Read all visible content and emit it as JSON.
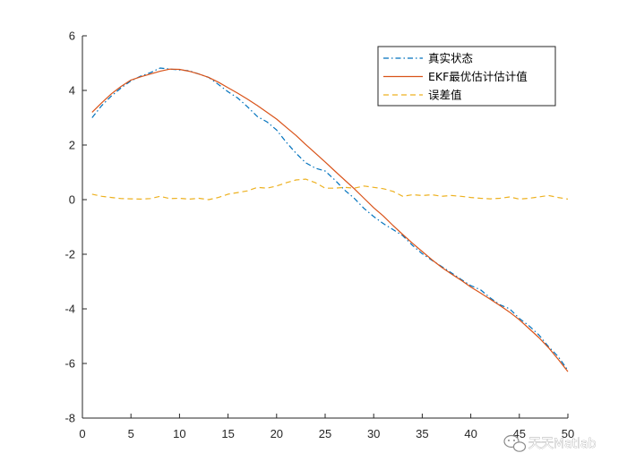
{
  "chart_data": {
    "type": "line",
    "xlabel": "",
    "ylabel": "",
    "xlim": [
      0,
      50
    ],
    "ylim": [
      -8,
      6
    ],
    "xticks": [
      0,
      5,
      10,
      15,
      20,
      25,
      30,
      35,
      40,
      45,
      50
    ],
    "yticks": [
      -8,
      -6,
      -4,
      -2,
      0,
      2,
      4,
      6
    ],
    "grid": false,
    "legend_position": "top-right",
    "series": [
      {
        "name": "真实状态",
        "color": "#0072BD",
        "style": "dashdot",
        "x": [
          1,
          2,
          3,
          4,
          5,
          6,
          7,
          8,
          9,
          10,
          11,
          12,
          13,
          14,
          15,
          16,
          17,
          18,
          19,
          20,
          21,
          22,
          23,
          24,
          25,
          26,
          27,
          28,
          29,
          30,
          31,
          32,
          33,
          34,
          35,
          36,
          37,
          38,
          39,
          40,
          41,
          42,
          43,
          44,
          45,
          46,
          47,
          48,
          49,
          50
        ],
        "values": [
          3.0,
          3.45,
          3.8,
          4.1,
          4.35,
          4.52,
          4.65,
          4.82,
          4.78,
          4.75,
          4.72,
          4.6,
          4.48,
          4.22,
          3.95,
          3.72,
          3.4,
          3.05,
          2.85,
          2.55,
          2.1,
          1.7,
          1.35,
          1.15,
          1.05,
          0.72,
          0.35,
          0.05,
          -0.32,
          -0.62,
          -0.88,
          -1.1,
          -1.32,
          -1.68,
          -1.98,
          -2.22,
          -2.45,
          -2.68,
          -2.92,
          -3.15,
          -3.3,
          -3.6,
          -3.85,
          -4.0,
          -4.35,
          -4.62,
          -4.95,
          -5.38,
          -5.75,
          -6.25
        ]
      },
      {
        "name": "EKF最优估计估计值",
        "color": "#D95319",
        "style": "solid",
        "x": [
          1,
          2,
          3,
          4,
          5,
          6,
          7,
          8,
          9,
          10,
          11,
          12,
          13,
          14,
          15,
          16,
          17,
          18,
          19,
          20,
          21,
          22,
          23,
          24,
          25,
          26,
          27,
          28,
          29,
          30,
          31,
          32,
          33,
          34,
          35,
          36,
          37,
          38,
          39,
          40,
          41,
          42,
          43,
          44,
          45,
          46,
          47,
          48,
          49,
          50
        ],
        "values": [
          3.2,
          3.55,
          3.88,
          4.15,
          4.38,
          4.5,
          4.6,
          4.7,
          4.78,
          4.77,
          4.7,
          4.6,
          4.48,
          4.3,
          4.1,
          3.9,
          3.68,
          3.45,
          3.2,
          2.95,
          2.65,
          2.35,
          2.02,
          1.7,
          1.38,
          1.05,
          0.72,
          0.4,
          0.05,
          -0.3,
          -0.6,
          -0.95,
          -1.28,
          -1.6,
          -1.9,
          -2.2,
          -2.48,
          -2.72,
          -2.95,
          -3.2,
          -3.42,
          -3.65,
          -3.88,
          -4.12,
          -4.4,
          -4.72,
          -5.05,
          -5.42,
          -5.85,
          -6.3
        ]
      },
      {
        "name": "误差值",
        "color": "#EDB120",
        "style": "dashed",
        "x": [
          1,
          2,
          3,
          4,
          5,
          6,
          7,
          8,
          9,
          10,
          11,
          12,
          13,
          14,
          15,
          16,
          17,
          18,
          19,
          20,
          21,
          22,
          23,
          24,
          25,
          26,
          27,
          28,
          29,
          30,
          31,
          32,
          33,
          34,
          35,
          36,
          37,
          38,
          39,
          40,
          41,
          42,
          43,
          44,
          45,
          46,
          47,
          48,
          49,
          50
        ],
        "values": [
          0.2,
          0.12,
          0.08,
          0.04,
          0.03,
          0.02,
          0.04,
          0.12,
          0.04,
          0.05,
          0.02,
          0.05,
          0.0,
          0.08,
          0.2,
          0.26,
          0.32,
          0.45,
          0.42,
          0.5,
          0.62,
          0.72,
          0.75,
          0.62,
          0.42,
          0.42,
          0.45,
          0.42,
          0.5,
          0.45,
          0.4,
          0.3,
          0.12,
          0.18,
          0.15,
          0.18,
          0.12,
          0.15,
          0.12,
          0.08,
          0.05,
          0.03,
          0.05,
          0.1,
          0.02,
          0.05,
          0.1,
          0.15,
          0.08,
          0.02
        ]
      }
    ]
  },
  "watermark": {
    "text": "天天Matlab",
    "icon": "wechat-icon"
  }
}
